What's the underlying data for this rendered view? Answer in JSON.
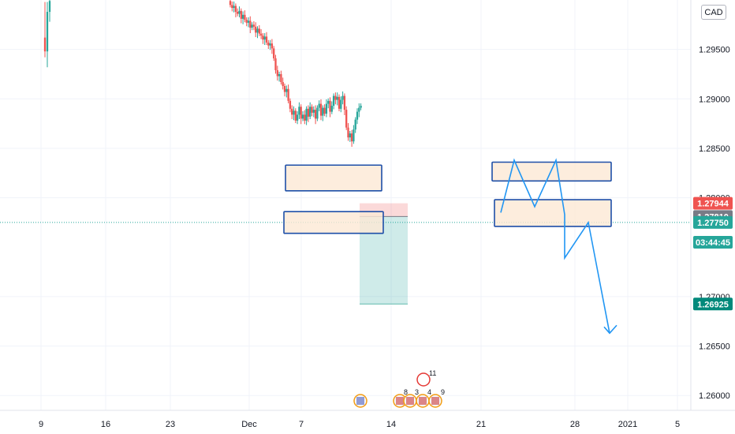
{
  "chart_data": {
    "type": "candlestick",
    "currency": "CAD",
    "x_ticks": [
      "9",
      "16",
      "23",
      "Dec",
      "7",
      "14",
      "21",
      "28",
      "2021",
      "5"
    ],
    "y_ticks": [
      "1.29500",
      "1.29000",
      "1.28500",
      "1.28000",
      "1.27000",
      "1.26500",
      "1.26000"
    ],
    "ylim": [
      1.2585,
      1.3
    ],
    "price_labels": [
      {
        "value": "1.27944",
        "color": "#ef5350"
      },
      {
        "value": "1.27810",
        "color": "#787b86"
      },
      {
        "value": "1.27750",
        "color": "#26a69a"
      },
      {
        "value": "03:44:45",
        "color": "#26a69a"
      },
      {
        "value": "1.26925",
        "color": "#00897b"
      }
    ],
    "current_price": 1.2775,
    "position": {
      "entry": 1.2781,
      "stop": 1.27944,
      "target": 1.26925
    },
    "zones": [
      {
        "low": 1.2807,
        "high": 1.2833
      },
      {
        "low": 1.2764,
        "high": 1.2786
      },
      {
        "low": 1.2817,
        "high": 1.2836
      },
      {
        "low": 1.2771,
        "high": 1.2798
      }
    ],
    "projection_prices": [
      1.2785,
      1.2838,
      1.2791,
      1.2838,
      1.2783,
      1.2739,
      1.2775,
      1.2663
    ],
    "event_labels": [
      "11",
      "8",
      "3",
      "4",
      "9"
    ],
    "colors": {
      "up": "#26a69a",
      "down": "#ef5350",
      "zone_fill": "#fce8d4",
      "zone_border": "#1e4fa8",
      "projection": "#2196f3"
    }
  }
}
